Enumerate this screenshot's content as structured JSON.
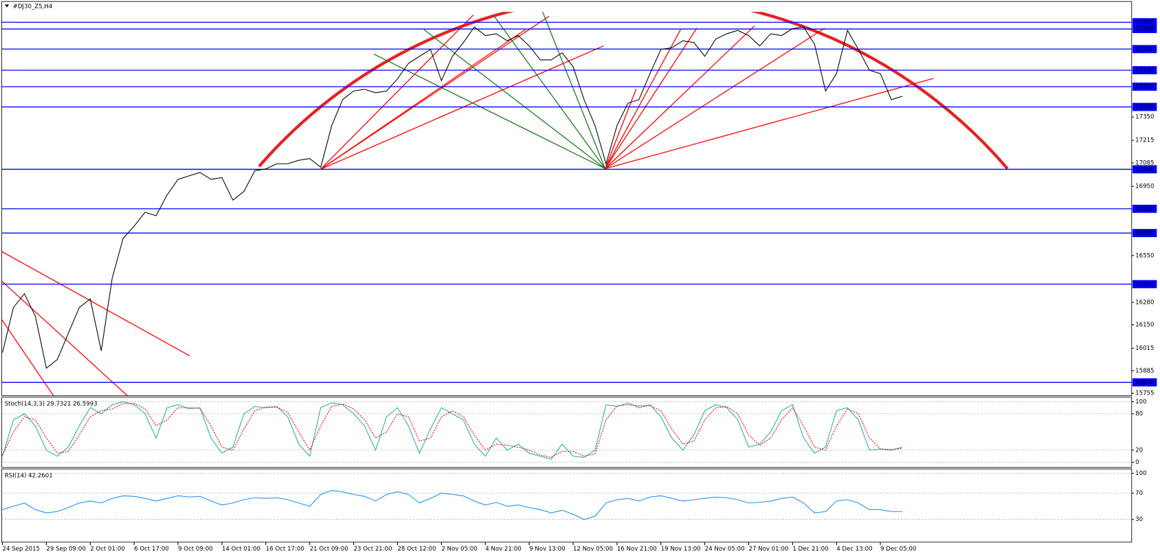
{
  "chart_data": [
    {
      "type": "line",
      "title": "#DJ30_Z5,H4",
      "categories": [
        "24 Sep 2015",
        null,
        null,
        null,
        "29 Sep 09:00",
        null,
        null,
        null,
        "2 Oct 01:00",
        null,
        null,
        null,
        "6 Oct 17:00",
        null,
        null,
        null,
        "9 Oct 09:00",
        null,
        null,
        null,
        "14 Oct 01:00",
        null,
        null,
        null,
        "16 Oct 17:00",
        null,
        null,
        null,
        "21 Oct 09:00",
        null,
        null,
        null,
        "23 Oct 21:00",
        null,
        null,
        null,
        "28 Oct 12:00",
        null,
        null,
        null,
        "2 Nov 05:00",
        null,
        null,
        null,
        "4 Nov 21:00",
        null,
        null,
        null,
        "9 Nov 13:00",
        null,
        null,
        null,
        "12 Nov 05:00",
        null,
        null,
        null,
        "16 Nov 21:00",
        null,
        null,
        null,
        "19 Nov 13:00",
        null,
        null,
        null,
        "24 Nov 05:00",
        null,
        null,
        null,
        "27 Nov 01:00",
        null,
        null,
        null,
        "1 Dec 21:00",
        null,
        null,
        null,
        "4 Dec 13:00",
        null,
        null,
        null,
        "9 Dec 05:00",
        null,
        null
      ],
      "values": [
        15990,
        16250,
        16330,
        16200,
        15900,
        15950,
        16100,
        16250,
        16300,
        16000,
        16420,
        16650,
        16720,
        16800,
        16780,
        16900,
        16990,
        17010,
        17030,
        16990,
        17000,
        16870,
        16920,
        17040,
        17050,
        17080,
        17080,
        17100,
        17110,
        17060,
        17300,
        17450,
        17500,
        17510,
        17490,
        17500,
        17570,
        17660,
        17700,
        17740,
        17560,
        17700,
        17780,
        17870,
        17820,
        17830,
        17790,
        17820,
        17760,
        17680,
        17680,
        17720,
        17640,
        17450,
        17300,
        17080,
        17300,
        17430,
        17450,
        17600,
        17740,
        17750,
        17790,
        17780,
        17700,
        17800,
        17830,
        17850,
        17820,
        17760,
        17830,
        17820,
        17860,
        17870,
        17770,
        17500,
        17600,
        17850,
        17740,
        17620,
        17600,
        17450,
        17470
      ],
      "color": "#000000",
      "ylim": [
        15741,
        17957
      ],
      "yticks": [
        15755,
        15885,
        16015,
        16150,
        16280,
        16550,
        16950,
        17085,
        17215,
        17350
      ],
      "levels": [
        17897,
        17858,
        17742,
        17620,
        17525,
        17408,
        17048,
        16820,
        16680,
        16385,
        15818
      ],
      "level_color": "#0000ff"
    },
    {
      "type": "line",
      "title": "Stoch(14,3,3) 29.7321 26.5993",
      "series": [
        {
          "color": "#20b2aa",
          "values": [
            10,
            70,
            80,
            60,
            20,
            10,
            25,
            60,
            90,
            80,
            95,
            100,
            95,
            80,
            40,
            90,
            95,
            88,
            90,
            40,
            15,
            25,
            80,
            92,
            90,
            92,
            75,
            30,
            10,
            90,
            98,
            95,
            80,
            60,
            20,
            75,
            90,
            60,
            15,
            55,
            90,
            80,
            70,
            30,
            10,
            40,
            20,
            30,
            15,
            10,
            5,
            30,
            10,
            8,
            20,
            95,
            92,
            98,
            90,
            95,
            75,
            40,
            20,
            45,
            85,
            95,
            90,
            70,
            25,
            30,
            50,
            85,
            95,
            40,
            15,
            25,
            85,
            90,
            70,
            20,
            22,
            20,
            25
          ]
        },
        {
          "color": "#ff0000",
          "dashed": true,
          "values": [
            12,
            50,
            75,
            70,
            40,
            15,
            18,
            45,
            75,
            85,
            88,
            97,
            97,
            88,
            60,
            70,
            90,
            90,
            89,
            60,
            25,
            20,
            55,
            85,
            91,
            91,
            82,
            50,
            20,
            60,
            92,
            96,
            88,
            70,
            40,
            50,
            80,
            75,
            35,
            40,
            75,
            85,
            75,
            45,
            20,
            30,
            28,
            25,
            20,
            12,
            8,
            18,
            18,
            10,
            14,
            70,
            93,
            95,
            93,
            93,
            85,
            55,
            30,
            35,
            70,
            90,
            92,
            80,
            45,
            28,
            40,
            70,
            90,
            60,
            25,
            20,
            60,
            88,
            80,
            40,
            22,
            21,
            23
          ]
        }
      ],
      "ylim": [
        0,
        100
      ],
      "yticks": [
        0,
        20,
        80,
        100
      ]
    },
    {
      "type": "line",
      "title": "RSI(14) 42.2601",
      "series": [
        {
          "color": "#1e90ff",
          "values": [
            45,
            50,
            55,
            45,
            40,
            42,
            48,
            55,
            58,
            55,
            62,
            66,
            65,
            62,
            58,
            62,
            66,
            64,
            65,
            58,
            52,
            55,
            60,
            63,
            62,
            63,
            60,
            55,
            50,
            68,
            74,
            72,
            68,
            65,
            58,
            68,
            72,
            68,
            55,
            62,
            70,
            68,
            66,
            58,
            52,
            56,
            50,
            52,
            48,
            45,
            40,
            44,
            38,
            30,
            35,
            55,
            60,
            62,
            58,
            64,
            66,
            62,
            58,
            60,
            62,
            64,
            63,
            60,
            55,
            56,
            58,
            62,
            64,
            55,
            40,
            42,
            58,
            60,
            55,
            45,
            45,
            42,
            42
          ]
        }
      ],
      "ylim": [
        0,
        100
      ],
      "yticks": [
        30,
        70,
        100
      ]
    }
  ]
}
